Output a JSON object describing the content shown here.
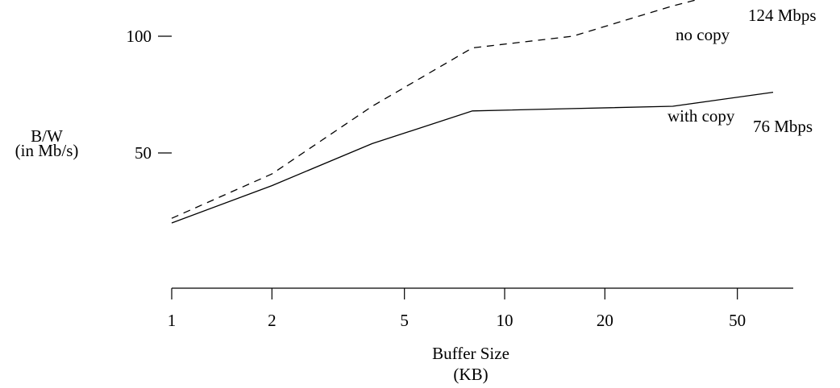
{
  "chart_data": {
    "type": "line",
    "xscale": "log",
    "xlabel_lines": [
      "Buffer Size",
      "(KB)"
    ],
    "ylabel_lines": [
      "B/W",
      "(in Mb/s)"
    ],
    "xticks": [
      1,
      2,
      5,
      10,
      20,
      50
    ],
    "xtick_labels": [
      "1",
      "2",
      "5",
      "10",
      "20",
      "50"
    ],
    "yticks": [
      50,
      100
    ],
    "ytick_labels": [
      "50",
      "100"
    ],
    "xlim": [
      1,
      64
    ],
    "ylim": [
      0,
      124
    ],
    "grid": false,
    "series": [
      {
        "name": "no copy",
        "style": "dashed",
        "color": "#000000",
        "x": [
          1,
          2,
          4,
          8,
          16,
          32,
          64
        ],
        "y": [
          22,
          41,
          70,
          95,
          100,
          113,
          124
        ]
      },
      {
        "name": "with copy",
        "style": "solid",
        "color": "#000000",
        "x": [
          1,
          2,
          4,
          8,
          16,
          32,
          64
        ],
        "y": [
          20,
          36,
          54,
          68,
          69,
          70,
          76
        ]
      }
    ],
    "annotations": [
      {
        "id": "no-copy-end-label",
        "text": "124 Mbps",
        "series": 0
      },
      {
        "id": "with-copy-end-label",
        "text": "76 Mbps",
        "series": 1
      }
    ]
  }
}
